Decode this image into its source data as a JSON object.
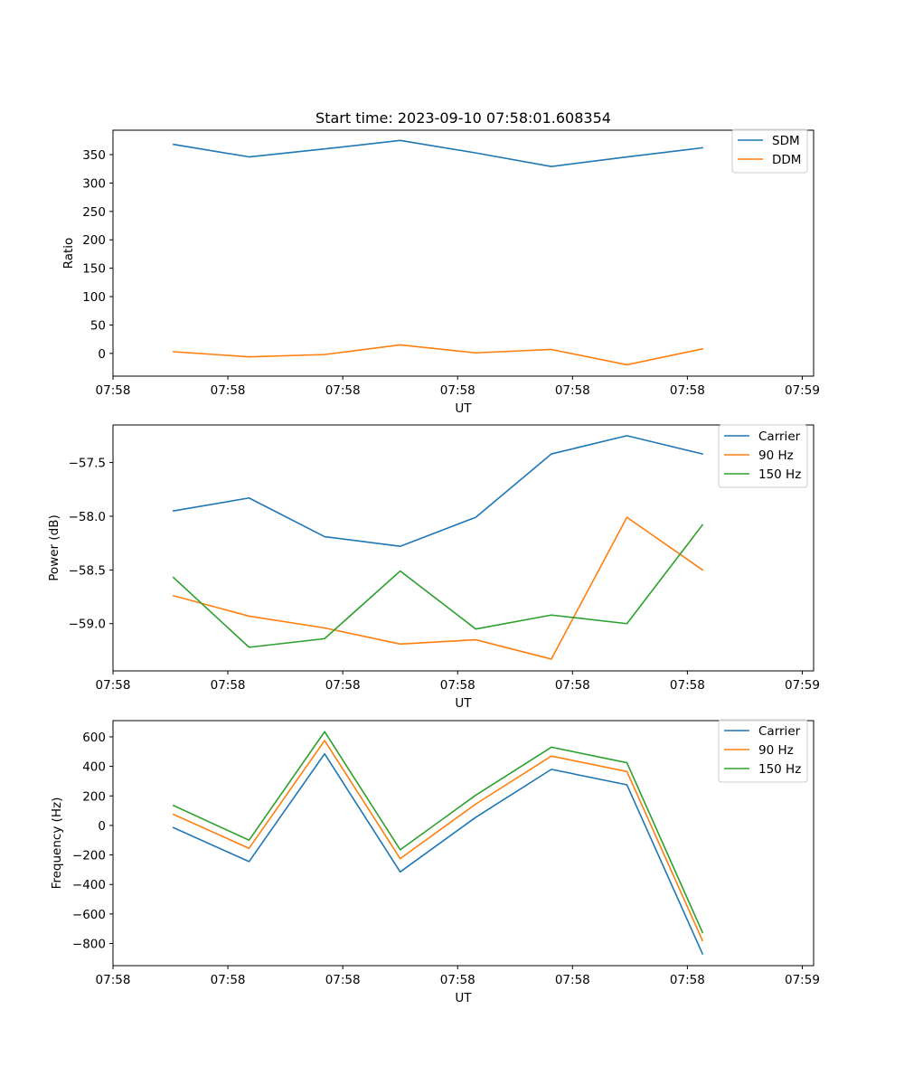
{
  "figure": {
    "title": "Start time: 2023-09-10 07:58:01.608354"
  },
  "colors": {
    "blue": "#1f77b4",
    "orange": "#ff7f0e",
    "green": "#2ca02c"
  },
  "chart_data": [
    {
      "type": "line",
      "title": "Start time: 2023-09-10 07:58:01.608354",
      "xlabel": "UT",
      "ylabel": "Ratio",
      "x_tick_labels": [
        "07:58",
        "07:58",
        "07:58",
        "07:58",
        "07:58",
        "07:58",
        "07:59"
      ],
      "y_ticks": [
        0,
        50,
        100,
        150,
        200,
        250,
        300,
        350
      ],
      "y_tick_labels": [
        "0",
        "50",
        "100",
        "150",
        "200",
        "250",
        "300",
        "350"
      ],
      "ylim": [
        -40,
        393
      ],
      "x": [
        1,
        2,
        3,
        4,
        5,
        6,
        7,
        8
      ],
      "xlim": [
        0.2,
        9.47
      ],
      "x_ticks": [
        0.2,
        1.72,
        3.24,
        4.76,
        6.28,
        7.8,
        9.32
      ],
      "legend": "top-right",
      "grid": false,
      "series": [
        {
          "name": "SDM",
          "color": "#1f77b4",
          "values": [
            368,
            346,
            360,
            375,
            353,
            329,
            346,
            362
          ]
        },
        {
          "name": "DDM",
          "color": "#ff7f0e",
          "values": [
            3,
            -6,
            -2,
            15,
            1,
            7,
            -20,
            8
          ]
        }
      ]
    },
    {
      "type": "line",
      "xlabel": "UT",
      "ylabel": "Power (dB)",
      "x_tick_labels": [
        "07:58",
        "07:58",
        "07:58",
        "07:58",
        "07:58",
        "07:58",
        "07:59"
      ],
      "y_ticks": [
        -59.0,
        -58.5,
        -58.0,
        -57.5
      ],
      "y_tick_labels": [
        "−59.0",
        "−58.5",
        "−58.0",
        "−57.5"
      ],
      "ylim": [
        -59.44,
        -57.15
      ],
      "x": [
        1,
        2,
        3,
        4,
        5,
        6,
        7,
        8
      ],
      "xlim": [
        0.2,
        9.47
      ],
      "x_ticks": [
        0.2,
        1.72,
        3.24,
        4.76,
        6.28,
        7.8,
        9.32
      ],
      "legend": "top-right",
      "grid": false,
      "series": [
        {
          "name": "Carrier",
          "color": "#1f77b4",
          "values": [
            -57.95,
            -57.83,
            -58.19,
            -58.28,
            -58.01,
            -57.42,
            -57.25,
            -57.42
          ]
        },
        {
          "name": "90 Hz",
          "color": "#ff7f0e",
          "values": [
            -58.74,
            -58.93,
            -59.04,
            -59.19,
            -59.15,
            -59.33,
            -58.01,
            -58.5
          ]
        },
        {
          "name": "150 Hz",
          "color": "#2ca02c",
          "values": [
            -58.57,
            -59.22,
            -59.14,
            -58.51,
            -59.05,
            -58.92,
            -59.0,
            -58.08
          ]
        }
      ]
    },
    {
      "type": "line",
      "xlabel": "UT",
      "ylabel": "Frequency (Hz)",
      "x_tick_labels": [
        "07:58",
        "07:58",
        "07:58",
        "07:58",
        "07:58",
        "07:58",
        "07:59"
      ],
      "y_ticks": [
        -800,
        -600,
        -400,
        -200,
        0,
        200,
        400,
        600
      ],
      "y_tick_labels": [
        "−800",
        "−600",
        "−400",
        "−200",
        "0",
        "200",
        "400",
        "600"
      ],
      "ylim": [
        -950,
        710
      ],
      "x": [
        1,
        2,
        3,
        4,
        5,
        6,
        7,
        8
      ],
      "xlim": [
        0.2,
        9.47
      ],
      "x_ticks": [
        0.2,
        1.72,
        3.24,
        4.76,
        6.28,
        7.8,
        9.32
      ],
      "legend": "top-right",
      "grid": false,
      "series": [
        {
          "name": "Carrier",
          "color": "#1f77b4",
          "values": [
            -15,
            -245,
            485,
            -315,
            55,
            380,
            275,
            -870
          ]
        },
        {
          "name": "90 Hz",
          "color": "#ff7f0e",
          "values": [
            75,
            -155,
            575,
            -225,
            145,
            470,
            365,
            -780
          ]
        },
        {
          "name": "150 Hz",
          "color": "#2ca02c",
          "values": [
            135,
            -100,
            635,
            -165,
            205,
            530,
            425,
            -725
          ]
        }
      ]
    }
  ]
}
